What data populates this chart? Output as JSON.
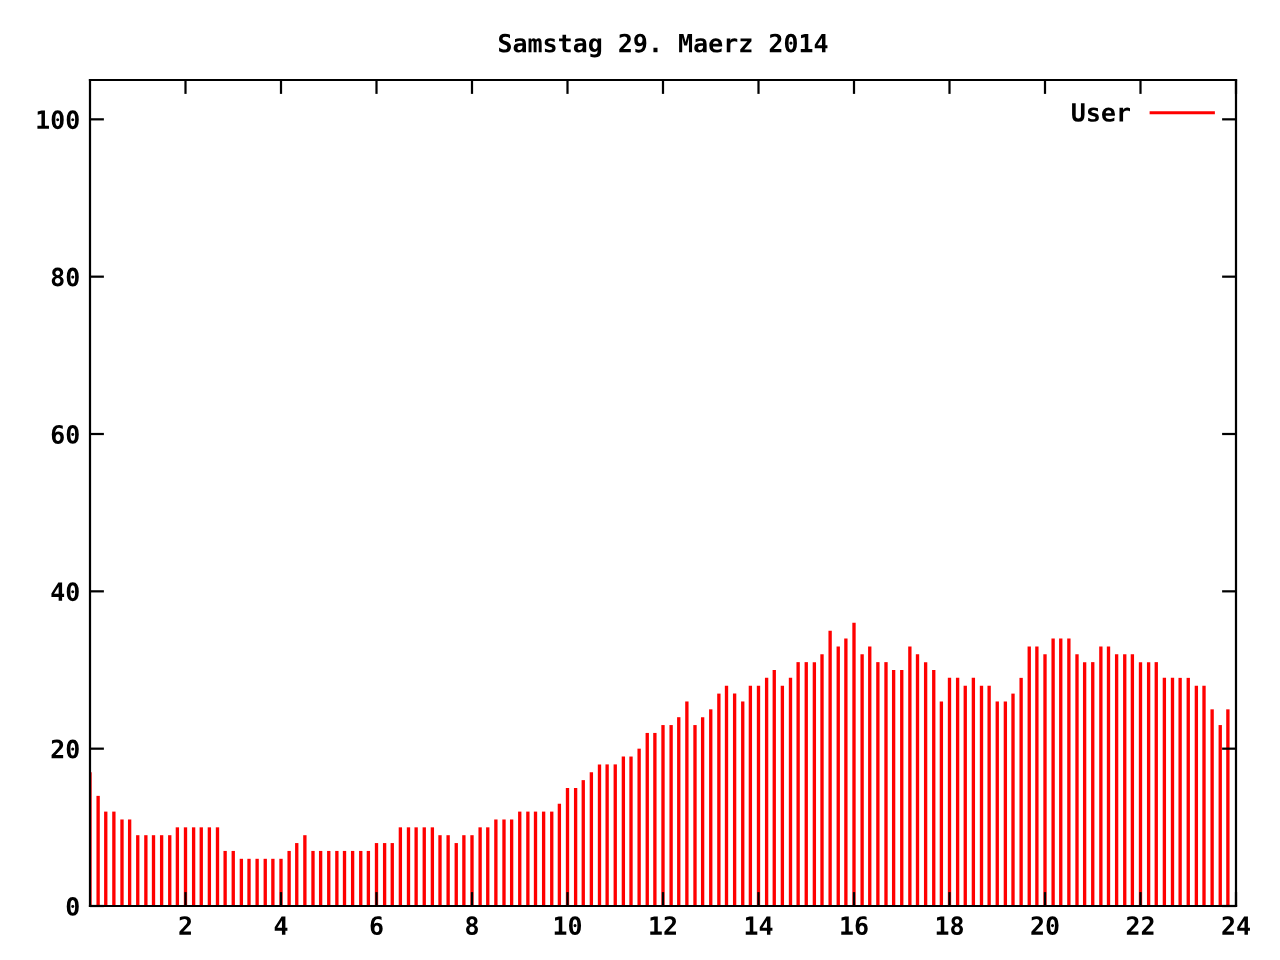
{
  "chart_data": {
    "type": "bar",
    "title": "Samstag 29. Maerz 2014",
    "x": [
      0,
      0.17,
      0.33,
      0.5,
      0.67,
      0.83,
      1,
      1.17,
      1.33,
      1.5,
      1.67,
      1.83,
      2,
      2.17,
      2.33,
      2.5,
      2.67,
      2.83,
      3,
      3.17,
      3.33,
      3.5,
      3.67,
      3.83,
      4,
      4.17,
      4.33,
      4.5,
      4.67,
      4.83,
      5,
      5.17,
      5.33,
      5.5,
      5.67,
      5.83,
      6,
      6.17,
      6.33,
      6.5,
      6.67,
      6.83,
      7,
      7.17,
      7.33,
      7.5,
      7.67,
      7.83,
      8,
      8.17,
      8.33,
      8.5,
      8.67,
      8.83,
      9,
      9.17,
      9.33,
      9.5,
      9.67,
      9.83,
      10,
      10.17,
      10.33,
      10.5,
      10.67,
      10.83,
      11,
      11.17,
      11.33,
      11.5,
      11.67,
      11.83,
      12,
      12.17,
      12.33,
      12.5,
      12.67,
      12.83,
      13,
      13.17,
      13.33,
      13.5,
      13.67,
      13.83,
      14,
      14.17,
      14.33,
      14.5,
      14.67,
      14.83,
      15,
      15.17,
      15.33,
      15.5,
      15.67,
      15.83,
      16,
      16.17,
      16.33,
      16.5,
      16.67,
      16.83,
      17,
      17.17,
      17.33,
      17.5,
      17.67,
      17.83,
      18,
      18.17,
      18.33,
      18.5,
      18.67,
      18.83,
      19,
      19.17,
      19.33,
      19.5,
      19.67,
      19.83,
      20,
      20.17,
      20.33,
      20.5,
      20.67,
      20.83,
      21,
      21.17,
      21.33,
      21.5,
      21.67,
      21.83,
      22,
      22.17,
      22.33,
      22.5,
      22.67,
      22.83,
      23,
      23.17,
      23.33,
      23.5,
      23.67,
      23.83
    ],
    "series": [
      {
        "name": "User",
        "color": "#ff0000",
        "values": [
          17,
          14,
          12,
          12,
          11,
          11,
          9,
          9,
          9,
          9,
          9,
          10,
          10,
          10,
          10,
          10,
          10,
          7,
          7,
          6,
          6,
          6,
          6,
          6,
          6,
          7,
          8,
          9,
          7,
          7,
          7,
          7,
          7,
          7,
          7,
          7,
          8,
          8,
          8,
          10,
          10,
          10,
          10,
          10,
          9,
          9,
          8,
          9,
          9,
          10,
          10,
          11,
          11,
          11,
          12,
          12,
          12,
          12,
          12,
          13,
          15,
          15,
          16,
          17,
          18,
          18,
          18,
          19,
          19,
          20,
          22,
          22,
          23,
          23,
          24,
          26,
          23,
          24,
          25,
          27,
          28,
          27,
          26,
          28,
          28,
          29,
          30,
          28,
          29,
          31,
          31,
          31,
          32,
          35,
          33,
          34,
          36,
          32,
          33,
          31,
          31,
          30,
          30,
          33,
          32,
          31,
          30,
          26,
          29,
          29,
          28,
          29,
          28,
          28,
          26,
          26,
          27,
          29,
          33,
          33,
          32,
          34,
          34,
          34,
          32,
          31,
          31,
          33,
          33,
          32,
          32,
          32,
          31,
          31,
          31,
          29,
          29,
          29,
          29,
          28,
          28,
          25,
          23,
          25
        ]
      }
    ],
    "xlim": [
      0,
      24
    ],
    "xticks": [
      2,
      4,
      6,
      8,
      10,
      12,
      14,
      16,
      18,
      20,
      22,
      24
    ],
    "ylim": [
      0,
      105
    ],
    "yticks": [
      0,
      20,
      40,
      60,
      80,
      100
    ],
    "grid": false,
    "legend": "top right"
  }
}
